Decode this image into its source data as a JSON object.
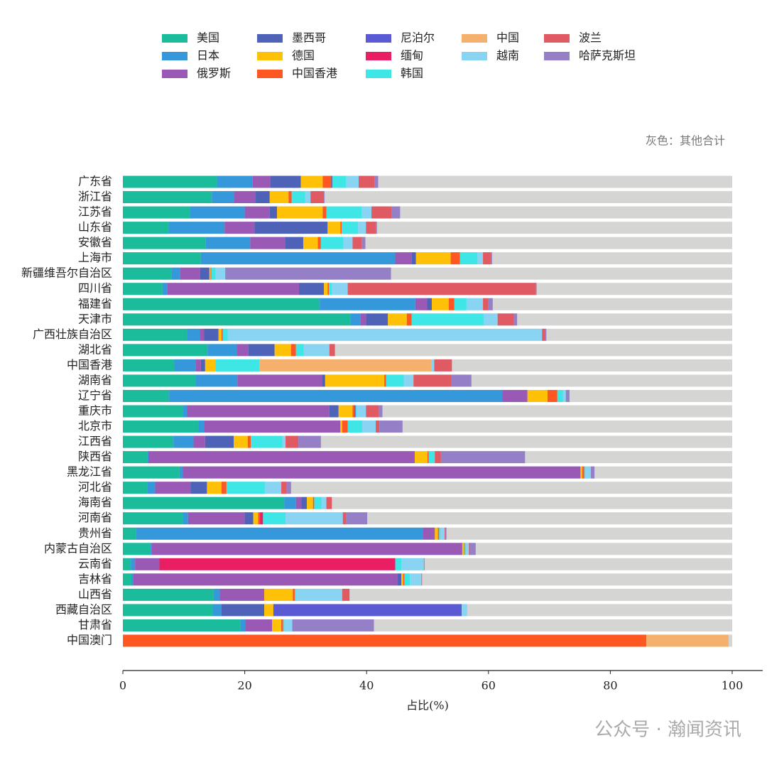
{
  "chart_data": {
    "type": "stacked-barh",
    "annotation": "灰色：其他合计",
    "xlabel": "占比(%)",
    "watermark": "公众号 · 瀚闻资讯",
    "xlim": [
      0,
      100
    ],
    "xticks": [
      0,
      20,
      40,
      60,
      80,
      100
    ],
    "track_color": "#d5d5d3",
    "categories": [
      "广东省",
      "浙江省",
      "江苏省",
      "山东省",
      "安徽省",
      "上海市",
      "新疆维吾尔自治区",
      "四川省",
      "福建省",
      "天津市",
      "广西壮族自治区",
      "湖北省",
      "中国香港",
      "湖南省",
      "辽宁省",
      "重庆市",
      "北京市",
      "江西省",
      "陕西省",
      "黑龙江省",
      "河北省",
      "海南省",
      "河南省",
      "贵州省",
      "内蒙古自治区",
      "云南省",
      "吉林省",
      "山西省",
      "西藏自治区",
      "甘肃省",
      "中国澳门"
    ],
    "series": [
      {
        "name": "美国",
        "color": "#1abc9c",
        "values": [
          15.5,
          14.6,
          11.0,
          7.5,
          13.6,
          12.8,
          8.0,
          6.5,
          32.3,
          37.4,
          10.6,
          13.9,
          8.4,
          11.9,
          7.6,
          9.9,
          12.4,
          8.3,
          4.0,
          9.3,
          4.0,
          26.5,
          9.9,
          2.2,
          4.5,
          1.3,
          1.4,
          14.9,
          14.8,
          19.3,
          0.1
        ]
      },
      {
        "name": "日本",
        "color": "#3498db",
        "values": [
          5.8,
          3.7,
          9.0,
          9.2,
          7.3,
          31.9,
          1.4,
          0.8,
          15.7,
          1.6,
          2.0,
          4.8,
          3.6,
          6.9,
          54.7,
          0.6,
          0.9,
          3.3,
          0.2,
          0.5,
          1.3,
          1.9,
          0.8,
          47.1,
          0.2,
          0.7,
          0.3,
          1.0,
          1.4,
          0.8,
          0
        ]
      },
      {
        "name": "俄罗斯",
        "color": "#9b59b6",
        "values": [
          2.9,
          3.5,
          4.1,
          4.9,
          5.7,
          2.7,
          3.3,
          21.6,
          1.9,
          0.9,
          0.7,
          1.9,
          0.8,
          13.9,
          4.1,
          23.4,
          22.4,
          1.9,
          43.7,
          65.3,
          5.8,
          0.9,
          9.3,
          1.9,
          51.0,
          4.0,
          43.4,
          7.3,
          0,
          4.4,
          0
        ]
      },
      {
        "name": "墨西哥",
        "color": "#4e62b8",
        "values": [
          5.0,
          2.3,
          1.2,
          12.0,
          3.0,
          0.7,
          1.5,
          4.1,
          0.8,
          3.6,
          2.4,
          4.3,
          0.7,
          0.5,
          0,
          1.5,
          0,
          4.7,
          0,
          0,
          2.7,
          0.9,
          1.4,
          0,
          0,
          0,
          0.6,
          0,
          7.0,
          0,
          0
        ]
      },
      {
        "name": "德国",
        "color": "#ffc107",
        "values": [
          3.6,
          3.1,
          7.5,
          2.1,
          2.4,
          5.7,
          0.2,
          0.6,
          2.8,
          3.1,
          0.5,
          2.7,
          1.7,
          9.7,
          3.3,
          2.3,
          0.3,
          2.3,
          2.1,
          0.3,
          2.4,
          1.0,
          0.8,
          0.5,
          0.3,
          0,
          0.3,
          4.7,
          1.5,
          1.5,
          0
        ]
      },
      {
        "name": "中国香港",
        "color": "#ff5722",
        "values": [
          1.4,
          0.5,
          0.6,
          0.2,
          0.5,
          1.5,
          0.1,
          0.2,
          0.9,
          0.8,
          0.2,
          0.8,
          0,
          0.3,
          1.6,
          0.3,
          0.9,
          0.5,
          0.2,
          0.3,
          0.8,
          0.2,
          0.3,
          0.2,
          0.1,
          0,
          0.2,
          0.3,
          0,
          0.3,
          85.8
        ]
      },
      {
        "name": "尼泊尔",
        "color": "#5a5bd4",
        "values": [
          0.1,
          0,
          0,
          0,
          0,
          0,
          0,
          0,
          0,
          0,
          0,
          0,
          0,
          0,
          0,
          0.2,
          0,
          0,
          0,
          0,
          0,
          0,
          0,
          0,
          0,
          0,
          0,
          0,
          30.9,
          0,
          0
        ]
      },
      {
        "name": "缅甸",
        "color": "#e91e63",
        "values": [
          0.1,
          0,
          0,
          0,
          0,
          0,
          0,
          0,
          0,
          0,
          0,
          0,
          0,
          0,
          0,
          0,
          0,
          0,
          0,
          0,
          0,
          0,
          0.5,
          0,
          0,
          38.7,
          0,
          0,
          0,
          0,
          0
        ]
      },
      {
        "name": "韩国",
        "color": "#3ee6e6",
        "values": [
          2.2,
          2.2,
          5.8,
          2.7,
          3.7,
          2.9,
          0.7,
          0.5,
          2.0,
          11.8,
          0.8,
          1.3,
          7.2,
          2.9,
          0.9,
          0.2,
          2.4,
          5.2,
          1.0,
          0.2,
          6.3,
          1.2,
          3.7,
          0.2,
          0.2,
          1.0,
          0.9,
          0.2,
          0,
          0.2,
          0
        ]
      },
      {
        "name": "中国",
        "color": "#f5b06e",
        "values": [
          0,
          0,
          0,
          0,
          0,
          0,
          0,
          0,
          0,
          0,
          0,
          0,
          28.2,
          0,
          0,
          0,
          0,
          0,
          0,
          0,
          0,
          0,
          0,
          0,
          0,
          0,
          0,
          0,
          0,
          0,
          13.5
        ]
      },
      {
        "name": "越南",
        "color": "#88d4f2",
        "values": [
          2.1,
          0.9,
          1.6,
          1.3,
          1.5,
          0.9,
          1.6,
          2.6,
          2.7,
          2.3,
          51.6,
          4.2,
          0.5,
          1.6,
          0.5,
          1.5,
          2.2,
          0.5,
          0,
          0.9,
          2.7,
          0.8,
          9.4,
          0.7,
          0.5,
          3.7,
          1.9,
          7.6,
          0.9,
          1.3,
          0
        ]
      },
      {
        "name": "波兰",
        "color": "#e05a64",
        "values": [
          2.6,
          2.2,
          3.3,
          1.6,
          1.5,
          1.3,
          0,
          30.9,
          0.9,
          2.7,
          0.5,
          0.9,
          2.9,
          6.2,
          0,
          2.1,
          0.6,
          2.1,
          1.0,
          0,
          0.9,
          0.9,
          0.5,
          0.1,
          0.2,
          0.1,
          0.1,
          1.2,
          0,
          0,
          0
        ]
      },
      {
        "name": "哈萨克斯坦",
        "color": "#9580c8",
        "values": [
          0.6,
          0.1,
          1.4,
          0.2,
          0.6,
          0.2,
          27.2,
          0.1,
          0.7,
          0.5,
          0.2,
          0,
          0,
          3.3,
          0.6,
          0.6,
          3.8,
          3.7,
          13.8,
          0.6,
          0.7,
          0,
          3.5,
          0.2,
          0.9,
          0,
          0,
          0,
          0,
          13.4,
          0
        ]
      }
    ]
  }
}
